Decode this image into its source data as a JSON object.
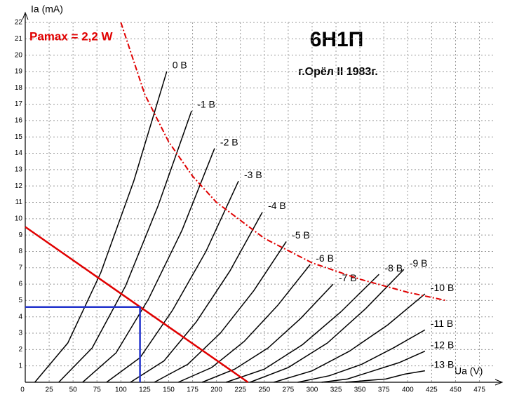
{
  "chart_data": {
    "type": "line",
    "title": "6Н1П",
    "subtitle": "г.Орёл II 1983г.",
    "y_label": "Ia (mA)",
    "x_label": "Ua (V)",
    "xlim": [
      0,
      490
    ],
    "ylim": [
      0,
      22
    ],
    "xticks": [
      0,
      25,
      50,
      75,
      100,
      125,
      150,
      175,
      200,
      225,
      250,
      275,
      300,
      325,
      350,
      375,
      400,
      425,
      450,
      475
    ],
    "yticks": [
      1,
      2,
      3,
      4,
      5,
      6,
      7,
      8,
      9,
      10,
      11,
      12,
      13,
      14,
      15,
      16,
      17,
      18,
      19,
      20,
      21,
      22
    ],
    "grid": true,
    "series": [
      {
        "name": "0 В",
        "color": "#000000",
        "x": [
          10,
          44.5,
          79,
          113.5,
          148
        ],
        "values": [
          0,
          2.4,
          6.7,
          12.3,
          19
        ]
      },
      {
        "name": "-1 В",
        "color": "#000000",
        "x": [
          35,
          70,
          105,
          139,
          174
        ],
        "values": [
          0,
          2.1,
          5.9,
          10.8,
          16.6
        ]
      },
      {
        "name": "-2 В",
        "color": "#000000",
        "x": [
          60,
          95,
          129,
          164,
          198
        ],
        "values": [
          0,
          1.8,
          5.1,
          9.3,
          14.3
        ]
      },
      {
        "name": "-3 В",
        "color": "#000000",
        "x": [
          85,
          120,
          154,
          189,
          223
        ],
        "values": [
          0,
          1.5,
          4.4,
          8.0,
          12.3
        ]
      },
      {
        "name": "-4 В",
        "color": "#000000",
        "x": [
          110,
          145,
          179,
          214,
          248
        ],
        "values": [
          0,
          1.3,
          3.7,
          6.8,
          10.4
        ]
      },
      {
        "name": "-5 В",
        "color": "#000000",
        "x": [
          135,
          170,
          204,
          239,
          273
        ],
        "values": [
          0,
          1.1,
          3.0,
          5.6,
          8.6
        ]
      },
      {
        "name": "-6 В",
        "color": "#000000",
        "x": [
          160,
          195,
          229,
          264,
          298
        ],
        "values": [
          0,
          0.9,
          2.5,
          4.7,
          7.2
        ]
      },
      {
        "name": "-7 В",
        "color": "#000000",
        "x": [
          185,
          219,
          254,
          288,
          322
        ],
        "values": [
          0,
          0.8,
          2.1,
          3.9,
          6.0
        ]
      },
      {
        "name": "-8 В",
        "color": "#000000",
        "x": [
          210,
          250,
          290,
          330,
          370
        ],
        "values": [
          0,
          0.8,
          2.3,
          4.3,
          6.6
        ]
      },
      {
        "name": "-9 В",
        "color": "#000000",
        "x": [
          235,
          275,
          316,
          356,
          396
        ],
        "values": [
          0,
          0.9,
          2.4,
          4.5,
          6.9
        ]
      },
      {
        "name": "-10 В",
        "color": "#000000",
        "x": [
          260,
          300,
          339,
          379,
          418
        ],
        "values": [
          0,
          0.7,
          1.9,
          3.5,
          5.4
        ]
      },
      {
        "name": "-11 В",
        "color": "#000000",
        "x": [
          285,
          318,
          352,
          385,
          418
        ],
        "values": [
          0,
          0.4,
          1.1,
          2.1,
          3.2
        ]
      },
      {
        "name": "-12 В",
        "color": "#000000",
        "x": [
          310,
          337,
          364,
          391,
          418
        ],
        "values": [
          0,
          0.2,
          0.7,
          1.2,
          1.9
        ]
      },
      {
        "name": "-13 В",
        "color": "#000000",
        "x": [
          335,
          356,
          377,
          397,
          418
        ],
        "values": [
          0,
          0.1,
          0.2,
          0.5,
          0.7
        ]
      }
    ],
    "overlays": [
      {
        "label": "Pamax = 2,2 W",
        "color": "#e00000",
        "style": "dashdot",
        "x": [
          100,
          125,
          150,
          175,
          200,
          250,
          300,
          350,
          400,
          440
        ],
        "values": [
          22,
          17.6,
          14.7,
          12.6,
          11,
          8.8,
          7.3,
          6.3,
          5.5,
          5.0
        ]
      },
      {
        "color": "#e00000",
        "style": "solid",
        "x": [
          0,
          233
        ],
        "values": [
          9.5,
          0
        ]
      },
      {
        "color": "#2233cc",
        "style": "solid",
        "x": [
          0,
          120,
          120
        ],
        "values": [
          4.6,
          4.6,
          0
        ]
      }
    ]
  }
}
